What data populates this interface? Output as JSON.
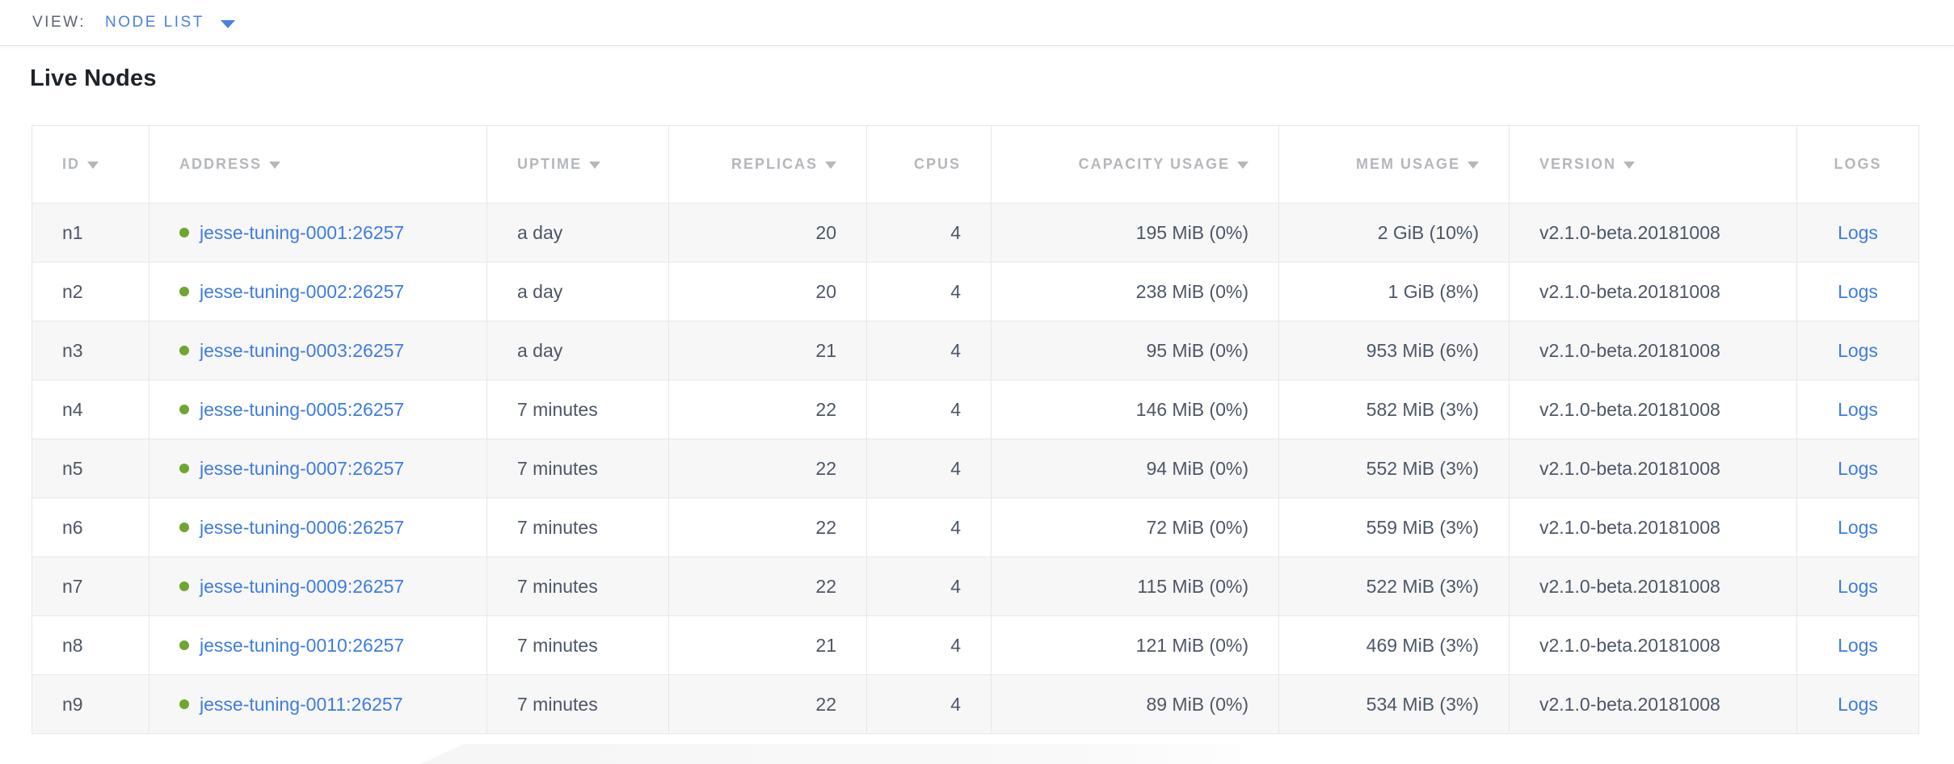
{
  "view_bar": {
    "label": "VIEW:",
    "selected": "NODE LIST"
  },
  "page": {
    "title": "Live Nodes"
  },
  "table": {
    "columns": [
      {
        "key": "id",
        "label": "ID",
        "sortable": true,
        "align": "left"
      },
      {
        "key": "address",
        "label": "ADDRESS",
        "sortable": true,
        "align": "left"
      },
      {
        "key": "uptime",
        "label": "UPTIME",
        "sortable": true,
        "align": "left"
      },
      {
        "key": "replicas",
        "label": "REPLICAS",
        "sortable": true,
        "align": "right"
      },
      {
        "key": "cpus",
        "label": "CPUS",
        "sortable": false,
        "align": "right"
      },
      {
        "key": "capacity",
        "label": "CAPACITY USAGE",
        "sortable": true,
        "align": "right"
      },
      {
        "key": "mem",
        "label": "MEM USAGE",
        "sortable": true,
        "align": "right"
      },
      {
        "key": "version",
        "label": "VERSION",
        "sortable": true,
        "align": "left"
      },
      {
        "key": "logs",
        "label": "LOGS",
        "sortable": false,
        "align": "center"
      }
    ],
    "rows": [
      {
        "id": "n1",
        "address": "jesse-tuning-0001:26257",
        "uptime": "a day",
        "replicas": "20",
        "cpus": "4",
        "capacity": "195 MiB (0%)",
        "mem": "2 GiB (10%)",
        "version": "v2.1.0-beta.20181008",
        "logs": "Logs"
      },
      {
        "id": "n2",
        "address": "jesse-tuning-0002:26257",
        "uptime": "a day",
        "replicas": "20",
        "cpus": "4",
        "capacity": "238 MiB (0%)",
        "mem": "1 GiB (8%)",
        "version": "v2.1.0-beta.20181008",
        "logs": "Logs"
      },
      {
        "id": "n3",
        "address": "jesse-tuning-0003:26257",
        "uptime": "a day",
        "replicas": "21",
        "cpus": "4",
        "capacity": "95 MiB (0%)",
        "mem": "953 MiB (6%)",
        "version": "v2.1.0-beta.20181008",
        "logs": "Logs"
      },
      {
        "id": "n4",
        "address": "jesse-tuning-0005:26257",
        "uptime": "7 minutes",
        "replicas": "22",
        "cpus": "4",
        "capacity": "146 MiB (0%)",
        "mem": "582 MiB (3%)",
        "version": "v2.1.0-beta.20181008",
        "logs": "Logs"
      },
      {
        "id": "n5",
        "address": "jesse-tuning-0007:26257",
        "uptime": "7 minutes",
        "replicas": "22",
        "cpus": "4",
        "capacity": "94 MiB (0%)",
        "mem": "552 MiB (3%)",
        "version": "v2.1.0-beta.20181008",
        "logs": "Logs"
      },
      {
        "id": "n6",
        "address": "jesse-tuning-0006:26257",
        "uptime": "7 minutes",
        "replicas": "22",
        "cpus": "4",
        "capacity": "72 MiB (0%)",
        "mem": "559 MiB (3%)",
        "version": "v2.1.0-beta.20181008",
        "logs": "Logs"
      },
      {
        "id": "n7",
        "address": "jesse-tuning-0009:26257",
        "uptime": "7 minutes",
        "replicas": "22",
        "cpus": "4",
        "capacity": "115 MiB (0%)",
        "mem": "522 MiB (3%)",
        "version": "v2.1.0-beta.20181008",
        "logs": "Logs"
      },
      {
        "id": "n8",
        "address": "jesse-tuning-0010:26257",
        "uptime": "7 minutes",
        "replicas": "21",
        "cpus": "4",
        "capacity": "121 MiB (0%)",
        "mem": "469 MiB (3%)",
        "version": "v2.1.0-beta.20181008",
        "logs": "Logs"
      },
      {
        "id": "n9",
        "address": "jesse-tuning-0011:26257",
        "uptime": "7 minutes",
        "replicas": "22",
        "cpus": "4",
        "capacity": "89 MiB (0%)",
        "mem": "534 MiB (3%)",
        "version": "v2.1.0-beta.20181008",
        "logs": "Logs"
      }
    ]
  },
  "colors": {
    "accent_blue": "#3e7ce2",
    "view_selector_blue": "#4a80e2",
    "node_live_dot_green": "#6fa530",
    "header_text_gray": "#b4b7bb",
    "cell_text": "#4c5767",
    "row_stripe": "#f7f7f7",
    "table_border": "#e7e7e7"
  }
}
